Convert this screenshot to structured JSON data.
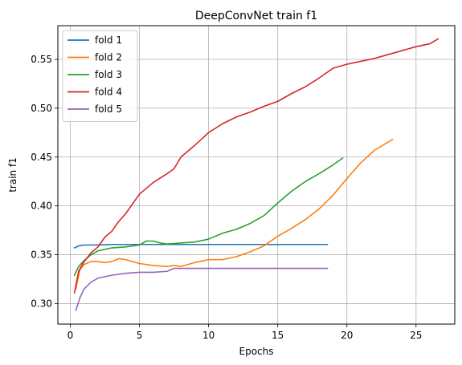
{
  "chart_data": {
    "type": "line",
    "title": "DeepConvNet train f1",
    "xlabel": "Epochs",
    "ylabel": "train f1",
    "xlim": [
      -0.9,
      27.8
    ],
    "ylim": [
      0.279,
      0.5845
    ],
    "xticks": [
      0,
      5,
      10,
      15,
      20,
      25
    ],
    "yticks": [
      0.3,
      0.35,
      0.4,
      0.45,
      0.5,
      0.55
    ],
    "ytick_labels": [
      "0.30",
      "0.35",
      "0.40",
      "0.45",
      "0.50",
      "0.55"
    ],
    "grid": true,
    "legend_position": "top-left",
    "series": [
      {
        "name": "fold 1",
        "color": "#1f77b4",
        "x": [
          0.3,
          0.6,
          1.0,
          1.5,
          2.0,
          3.0,
          4.0,
          6.0,
          8.0,
          10.0,
          12.0,
          14.0,
          16.0,
          18.6
        ],
        "y": [
          0.357,
          0.359,
          0.36,
          0.36,
          0.36,
          0.3605,
          0.3605,
          0.3605,
          0.3605,
          0.3605,
          0.3605,
          0.3605,
          0.3605,
          0.3605
        ]
      },
      {
        "name": "fold 2",
        "color": "#ff7f0e",
        "x": [
          0.4,
          0.7,
          1.0,
          1.5,
          2.0,
          2.5,
          3.0,
          3.5,
          4.0,
          5.0,
          6.0,
          7.0,
          7.5,
          8.0,
          9.0,
          10.0,
          11.0,
          12.0,
          13.0,
          14.0,
          15.0,
          16.0,
          17.0,
          18.0,
          19.0,
          20.0,
          21.0,
          22.0,
          23.3
        ],
        "y": [
          0.315,
          0.335,
          0.34,
          0.343,
          0.343,
          0.342,
          0.343,
          0.346,
          0.345,
          0.341,
          0.339,
          0.338,
          0.339,
          0.338,
          0.342,
          0.345,
          0.345,
          0.348,
          0.353,
          0.359,
          0.369,
          0.377,
          0.386,
          0.397,
          0.411,
          0.428,
          0.444,
          0.457,
          0.468
        ]
      },
      {
        "name": "fold 3",
        "color": "#2ca02c",
        "x": [
          0.3,
          0.6,
          1.0,
          1.5,
          2.0,
          3.0,
          4.0,
          5.0,
          5.5,
          6.0,
          6.5,
          7.0,
          8.0,
          9.0,
          10.0,
          11.0,
          12.0,
          13.0,
          14.0,
          15.0,
          16.0,
          17.0,
          18.0,
          19.0,
          19.7
        ],
        "y": [
          0.329,
          0.338,
          0.344,
          0.35,
          0.354,
          0.357,
          0.358,
          0.36,
          0.364,
          0.364,
          0.362,
          0.361,
          0.362,
          0.363,
          0.366,
          0.372,
          0.376,
          0.382,
          0.39,
          0.403,
          0.415,
          0.425,
          0.433,
          0.442,
          0.449
        ]
      },
      {
        "name": "fold 4",
        "color": "#d62728",
        "x": [
          0.3,
          0.6,
          1.0,
          1.5,
          2.0,
          2.5,
          3.0,
          3.5,
          4.0,
          5.0,
          6.0,
          7.0,
          7.5,
          8.0,
          9.0,
          10.0,
          11.0,
          12.0,
          13.0,
          14.0,
          15.0,
          16.0,
          17.0,
          18.0,
          19.0,
          20.0,
          21.0,
          22.0,
          23.0,
          24.0,
          25.0,
          26.0,
          26.6
        ],
        "y": [
          0.311,
          0.333,
          0.343,
          0.352,
          0.358,
          0.368,
          0.374,
          0.384,
          0.392,
          0.412,
          0.424,
          0.433,
          0.438,
          0.45,
          0.462,
          0.475,
          0.484,
          0.491,
          0.496,
          0.502,
          0.507,
          0.515,
          0.522,
          0.531,
          0.541,
          0.545,
          0.548,
          0.551,
          0.555,
          0.559,
          0.563,
          0.566,
          0.571
        ]
      },
      {
        "name": "fold 5",
        "color": "#9467bd",
        "x": [
          0.4,
          0.7,
          1.0,
          1.5,
          2.0,
          3.0,
          4.0,
          5.0,
          6.0,
          7.0,
          7.5,
          8.0,
          10.0,
          12.0,
          14.0,
          16.0,
          18.6
        ],
        "y": [
          0.293,
          0.306,
          0.315,
          0.322,
          0.326,
          0.329,
          0.331,
          0.332,
          0.332,
          0.333,
          0.336,
          0.336,
          0.336,
          0.336,
          0.336,
          0.336,
          0.336
        ]
      }
    ]
  }
}
